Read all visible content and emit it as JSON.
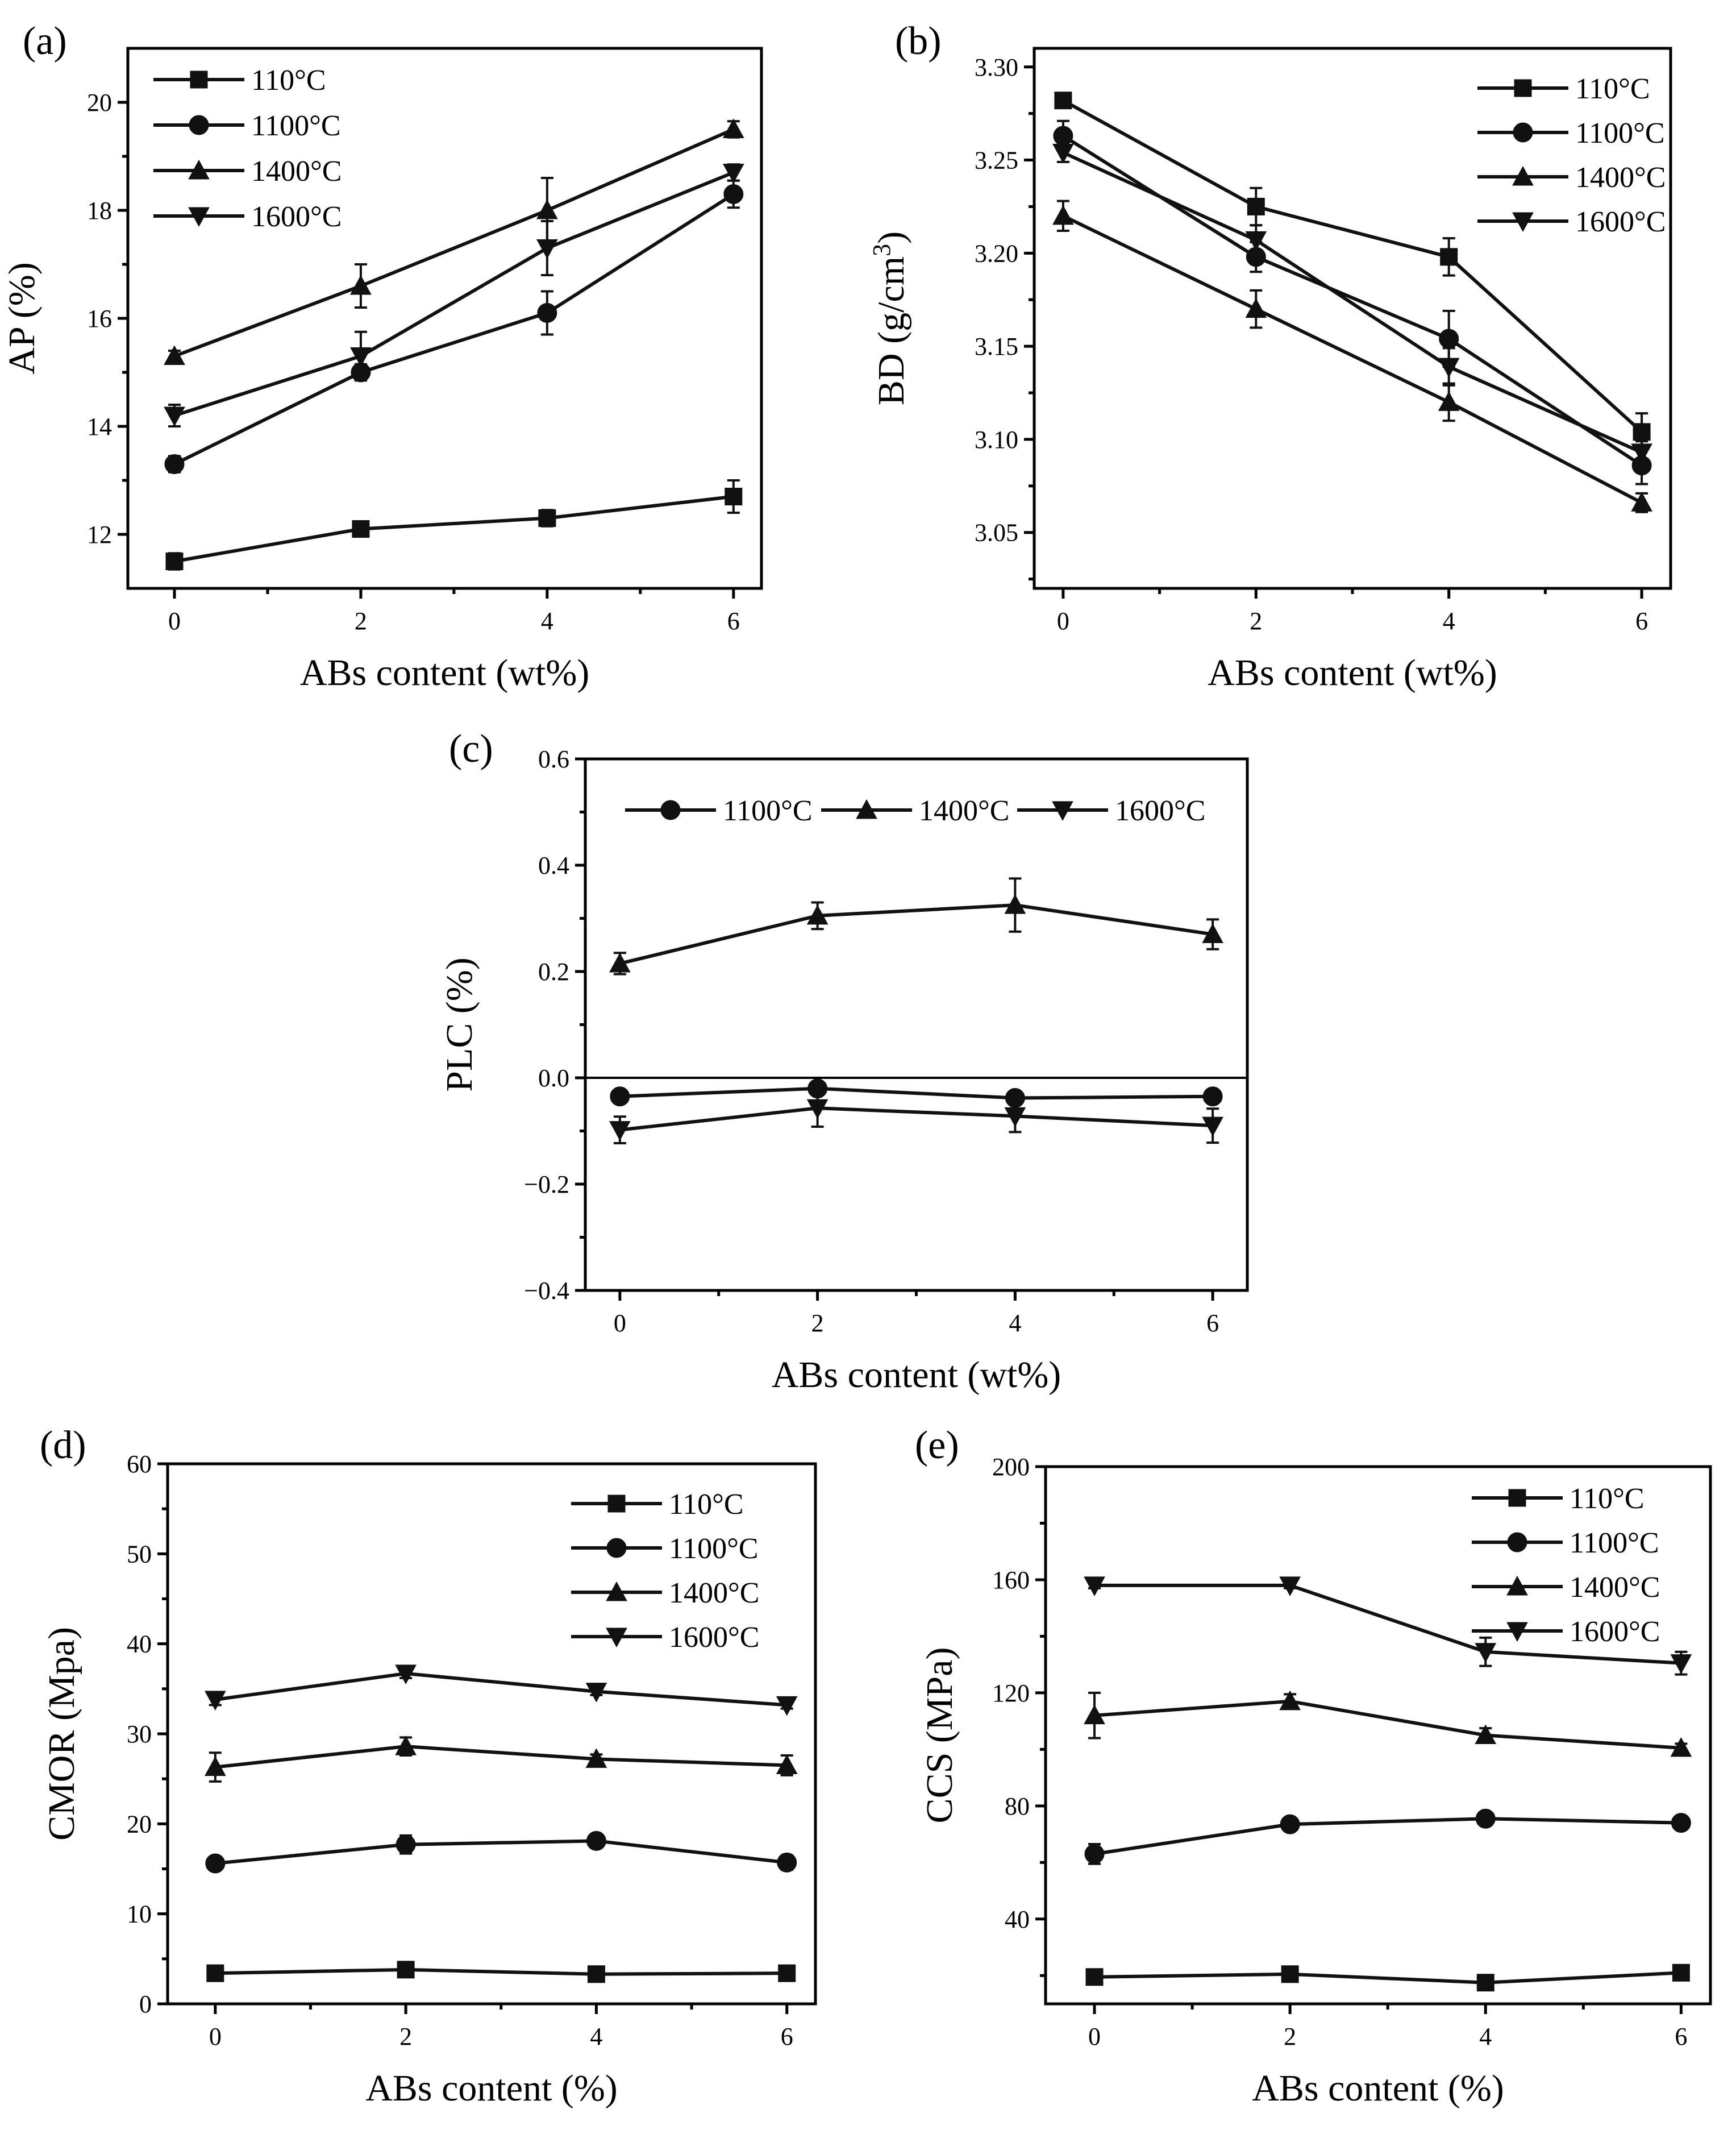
{
  "chart_data": [
    {
      "panel": "(a)",
      "type": "line",
      "xlabel": "ABs content (wt%)",
      "ylabel": "AP (%)",
      "x": [
        0,
        2,
        4,
        6
      ],
      "xticks": [
        0,
        2,
        4,
        6
      ],
      "xlim": [
        -0.5,
        6.3
      ],
      "ylim": [
        11,
        21
      ],
      "yticks": [
        12,
        14,
        16,
        18,
        20
      ],
      "ytick_decimals": 0,
      "legend_position": "top-left",
      "series": [
        {
          "name": "110°C",
          "marker": "square",
          "values": [
            11.5,
            12.1,
            12.3,
            12.7
          ],
          "errors": [
            0.15,
            0.12,
            0.15,
            0.3
          ]
        },
        {
          "name": "1100°C",
          "marker": "circle",
          "values": [
            13.3,
            15.0,
            16.1,
            18.3
          ],
          "errors": [
            0.15,
            0.15,
            0.4,
            0.25
          ]
        },
        {
          "name": "1400°C",
          "marker": "triangle-up",
          "values": [
            15.3,
            16.6,
            18.0,
            19.5
          ],
          "errors": [
            0.1,
            0.4,
            0.6,
            0.15
          ]
        },
        {
          "name": "1600°C",
          "marker": "triangle-down",
          "values": [
            14.2,
            15.3,
            17.3,
            18.7
          ],
          "errors": [
            0.2,
            0.45,
            0.5,
            0.15
          ]
        }
      ]
    },
    {
      "panel": "(b)",
      "type": "line",
      "xlabel": "ABs content (wt%)",
      "ylabel": "BD (g/cm",
      "ylabel_sup": "3",
      "ylabel_end": ")",
      "x": [
        0,
        2,
        4,
        6
      ],
      "xticks": [
        0,
        2,
        4,
        6
      ],
      "xlim": [
        -0.3,
        6.3
      ],
      "ylim": [
        3.02,
        3.31
      ],
      "yticks": [
        3.05,
        3.1,
        3.15,
        3.2,
        3.25,
        3.3
      ],
      "ytick_decimals": 2,
      "legend_position": "top-right",
      "series": [
        {
          "name": "110°C",
          "marker": "square",
          "values": [
            3.282,
            3.225,
            3.198,
            3.104
          ],
          "errors": [
            0.004,
            0.01,
            0.01,
            0.01
          ]
        },
        {
          "name": "1100°C",
          "marker": "circle",
          "values": [
            3.263,
            3.198,
            3.154,
            3.086
          ],
          "errors": [
            0.008,
            0.008,
            0.015,
            0.01
          ]
        },
        {
          "name": "1400°C",
          "marker": "triangle-up",
          "values": [
            3.22,
            3.17,
            3.12,
            3.066
          ],
          "errors": [
            0.008,
            0.01,
            0.01,
            0.005
          ]
        },
        {
          "name": "1600°C",
          "marker": "triangle-down",
          "values": [
            3.254,
            3.207,
            3.139,
            3.093
          ],
          "errors": [
            0.005,
            0.008,
            0.01,
            0.006
          ]
        }
      ]
    },
    {
      "panel": "(c)",
      "type": "line",
      "xlabel": "ABs content (wt%)",
      "ylabel": "PLC (%)",
      "x": [
        0,
        2,
        4,
        6
      ],
      "xticks": [
        0,
        2,
        4,
        6
      ],
      "xlim": [
        -0.35,
        6.35
      ],
      "ylim": [
        -0.4,
        0.6
      ],
      "yticks": [
        -0.4,
        -0.2,
        0.0,
        0.2,
        0.4,
        0.6
      ],
      "ytick_decimals": 1,
      "zero_line": true,
      "legend_position": "top",
      "legend_layout": "horizontal",
      "series": [
        {
          "name": "1100°C",
          "marker": "circle",
          "values": [
            -0.035,
            -0.02,
            -0.038,
            -0.035
          ],
          "errors": [
            0.008,
            0.008,
            0.008,
            0.008
          ]
        },
        {
          "name": "1400°C",
          "marker": "triangle-up",
          "values": [
            0.215,
            0.305,
            0.325,
            0.27
          ],
          "errors": [
            0.02,
            0.025,
            0.05,
            0.028
          ]
        },
        {
          "name": "1600°C",
          "marker": "triangle-down",
          "values": [
            -0.098,
            -0.057,
            -0.072,
            -0.09
          ],
          "errors": [
            0.025,
            0.035,
            0.03,
            0.032
          ]
        }
      ]
    },
    {
      "panel": "(d)",
      "type": "line",
      "xlabel": "ABs content (%)",
      "ylabel": "CMOR (Mpa)",
      "x": [
        0,
        2,
        4,
        6
      ],
      "xticks": [
        0,
        2,
        4,
        6
      ],
      "xlim": [
        -0.5,
        6.3
      ],
      "ylim": [
        0,
        60
      ],
      "yticks": [
        0,
        10,
        20,
        30,
        40,
        50,
        60
      ],
      "ytick_decimals": 0,
      "legend_position": "top-right",
      "series": [
        {
          "name": "110°C",
          "marker": "square",
          "values": [
            3.4,
            3.8,
            3.3,
            3.4
          ],
          "errors": [
            0.3,
            0.3,
            0.3,
            0.3
          ]
        },
        {
          "name": "1100°C",
          "marker": "circle",
          "values": [
            15.6,
            17.7,
            18.1,
            15.7
          ],
          "errors": [
            0.7,
            1.0,
            0.5,
            0.8
          ]
        },
        {
          "name": "1400°C",
          "marker": "triangle-up",
          "values": [
            26.3,
            28.6,
            27.2,
            26.5
          ],
          "errors": [
            1.6,
            1.0,
            0.5,
            1.1
          ]
        },
        {
          "name": "1600°C",
          "marker": "triangle-down",
          "values": [
            33.8,
            36.7,
            34.7,
            33.2
          ],
          "errors": [
            0.6,
            0.5,
            0.4,
            0.4
          ]
        }
      ]
    },
    {
      "panel": "(e)",
      "type": "line",
      "xlabel": "ABs content (%)",
      "ylabel": "CCS (MPa)",
      "x": [
        0,
        2,
        4,
        6
      ],
      "xticks": [
        0,
        2,
        4,
        6
      ],
      "xlim": [
        -0.5,
        6.3
      ],
      "ylim": [
        10,
        200
      ],
      "yticks": [
        40,
        80,
        120,
        160,
        200
      ],
      "ytick_decimals": 0,
      "legend_position": "top-right",
      "series": [
        {
          "name": "110°C",
          "marker": "square",
          "values": [
            19.5,
            20.5,
            17.5,
            21.0
          ],
          "errors": [
            1.0,
            1.0,
            1.0,
            1.0
          ]
        },
        {
          "name": "1100°C",
          "marker": "circle",
          "values": [
            63,
            73.5,
            75.5,
            74
          ],
          "errors": [
            3.5,
            1.5,
            1.5,
            1.5
          ]
        },
        {
          "name": "1400°C",
          "marker": "triangle-up",
          "values": [
            112,
            117,
            105,
            100.5
          ],
          "errors": [
            8,
            2.5,
            2.5,
            1.5
          ]
        },
        {
          "name": "1600°C",
          "marker": "triangle-down",
          "values": [
            158,
            158,
            134.5,
            130.5
          ],
          "errors": [
            1,
            1,
            5,
            4
          ]
        }
      ]
    }
  ]
}
